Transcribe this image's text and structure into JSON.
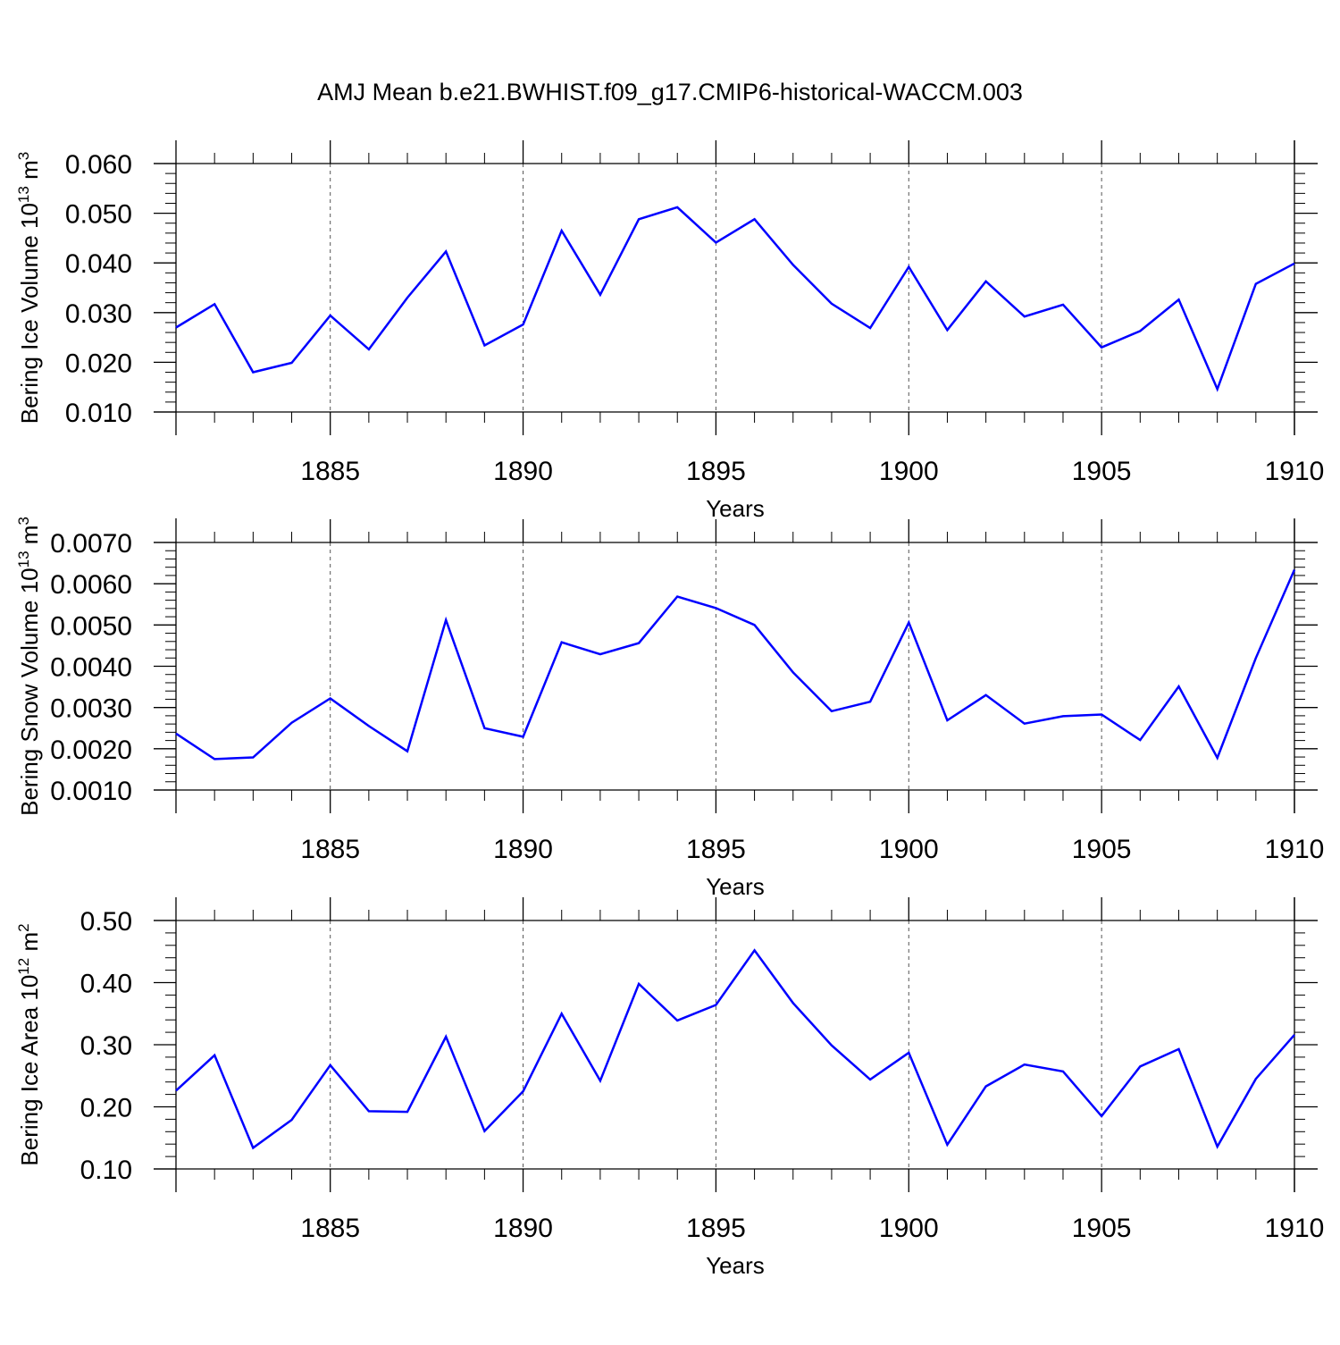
{
  "figure": {
    "title": "AMJ Mean b.e21.BWHIST.f09_g17.CMIP6-historical-WACCM.003",
    "line_color": "#0000ff",
    "grid_color": "#555555"
  },
  "chart_data": [
    {
      "type": "line",
      "title": "",
      "xlabel": "Years",
      "ylabel": "Bering Ice Volume 10",
      "ylabel_unit": " m",
      "ylabel_exp1": "13",
      "ylabel_exp2": "3",
      "xlim": [
        1881,
        1910
      ],
      "ylim": [
        0.01,
        0.06
      ],
      "yticks": [
        0.01,
        0.02,
        0.03,
        0.04,
        0.05,
        0.06
      ],
      "ytick_labels": [
        "0.010",
        "0.020",
        "0.030",
        "0.040",
        "0.050",
        "0.060"
      ],
      "xticks": [
        1885,
        1890,
        1895,
        1900,
        1905,
        1910
      ],
      "xtick_labels": [
        "1885",
        "1890",
        "1895",
        "1900",
        "1905",
        "1910"
      ],
      "grid": "vertical dashed at major x ticks",
      "series": [
        {
          "x": [
            1881,
            1882,
            1883,
            1884,
            1885,
            1886,
            1887,
            1888,
            1889,
            1890,
            1891,
            1892,
            1893,
            1894,
            1895,
            1896,
            1897,
            1898,
            1899,
            1900,
            1901,
            1902,
            1903,
            1904,
            1905,
            1906,
            1907,
            1908,
            1909,
            1910
          ],
          "values": [
            0.027,
            0.0317,
            0.018,
            0.0199,
            0.0294,
            0.0226,
            0.033,
            0.0423,
            0.0234,
            0.0276,
            0.0465,
            0.0336,
            0.0488,
            0.0512,
            0.0441,
            0.0488,
            0.0396,
            0.0318,
            0.0269,
            0.0392,
            0.0265,
            0.0363,
            0.0292,
            0.0316,
            0.023,
            0.0263,
            0.0326,
            0.0146,
            0.0358,
            0.0399
          ]
        }
      ]
    },
    {
      "type": "line",
      "title": "",
      "xlabel": "Years",
      "ylabel": "Bering Snow Volume 10",
      "ylabel_unit": " m",
      "ylabel_exp1": "13",
      "ylabel_exp2": "3",
      "xlim": [
        1881,
        1910
      ],
      "ylim": [
        0.001,
        0.007
      ],
      "yticks": [
        0.001,
        0.002,
        0.003,
        0.004,
        0.005,
        0.006,
        0.007
      ],
      "ytick_labels": [
        "0.0010",
        "0.0020",
        "0.0030",
        "0.0040",
        "0.0050",
        "0.0060",
        "0.0070"
      ],
      "xticks": [
        1885,
        1890,
        1895,
        1900,
        1905,
        1910
      ],
      "xtick_labels": [
        "1885",
        "1890",
        "1895",
        "1900",
        "1905",
        "1910"
      ],
      "grid": "vertical dashed at major x ticks",
      "series": [
        {
          "x": [
            1881,
            1882,
            1883,
            1884,
            1885,
            1886,
            1887,
            1888,
            1889,
            1890,
            1891,
            1892,
            1893,
            1894,
            1895,
            1896,
            1897,
            1898,
            1899,
            1900,
            1901,
            1902,
            1903,
            1904,
            1905,
            1906,
            1907,
            1908,
            1909,
            1910
          ],
          "values": [
            0.00237,
            0.00175,
            0.00179,
            0.00263,
            0.00322,
            0.00255,
            0.00194,
            0.00512,
            0.0025,
            0.00229,
            0.00458,
            0.00429,
            0.00456,
            0.00569,
            0.00541,
            0.005,
            0.00385,
            0.00291,
            0.00314,
            0.00506,
            0.00269,
            0.0033,
            0.00261,
            0.00279,
            0.00283,
            0.00221,
            0.00351,
            0.00178,
            0.0042,
            0.00634
          ]
        }
      ]
    },
    {
      "type": "line",
      "title": "",
      "xlabel": "Years",
      "ylabel": "Bering Ice Area 10",
      "ylabel_unit": " m",
      "ylabel_exp1": "12",
      "ylabel_exp2": "2",
      "xlim": [
        1881,
        1910
      ],
      "ylim": [
        0.1,
        0.5
      ],
      "yticks": [
        0.1,
        0.2,
        0.3,
        0.4,
        0.5
      ],
      "ytick_labels": [
        "0.10",
        "0.20",
        "0.30",
        "0.40",
        "0.50"
      ],
      "xticks": [
        1885,
        1890,
        1895,
        1900,
        1905,
        1910
      ],
      "xtick_labels": [
        "1885",
        "1890",
        "1895",
        "1900",
        "1905",
        "1910"
      ],
      "grid": "vertical dashed at major x ticks",
      "series": [
        {
          "x": [
            1881,
            1882,
            1883,
            1884,
            1885,
            1886,
            1887,
            1888,
            1889,
            1890,
            1891,
            1892,
            1893,
            1894,
            1895,
            1896,
            1897,
            1898,
            1899,
            1900,
            1901,
            1902,
            1903,
            1904,
            1905,
            1906,
            1907,
            1908,
            1909,
            1910
          ],
          "values": [
            0.226,
            0.283,
            0.134,
            0.179,
            0.267,
            0.193,
            0.192,
            0.313,
            0.161,
            0.225,
            0.35,
            0.242,
            0.398,
            0.339,
            0.364,
            0.452,
            0.367,
            0.299,
            0.244,
            0.287,
            0.139,
            0.233,
            0.268,
            0.257,
            0.185,
            0.265,
            0.293,
            0.136,
            0.245,
            0.316
          ]
        }
      ]
    }
  ]
}
